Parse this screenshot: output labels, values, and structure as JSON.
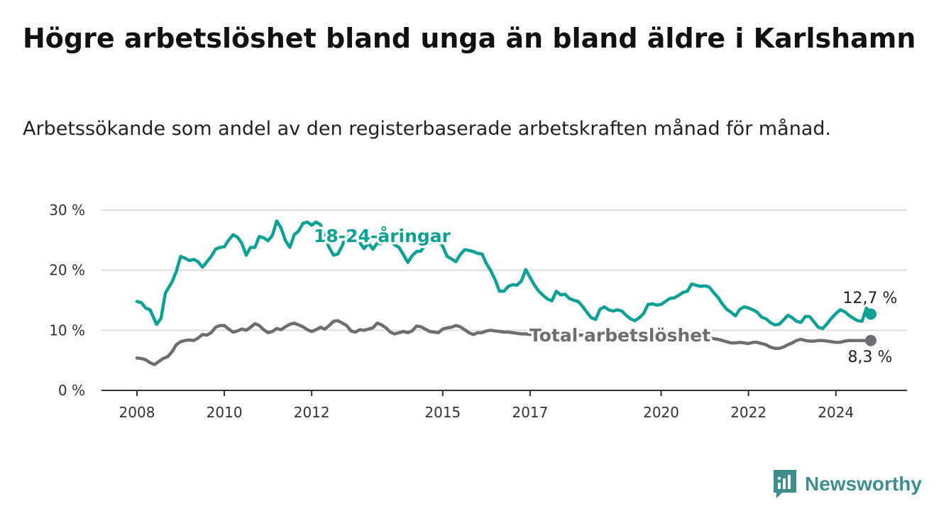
{
  "title": "Högre arbetslöshet bland unga än bland äldre i Karlshamn",
  "subtitle": "Arbetssökande som andel av den registerbaserade arbetskraften månad för månad.",
  "brand": "Newsworthy",
  "colors": {
    "youth": "#0fa193",
    "total": "#6e6d72",
    "grid": "#dddddd",
    "brand": "#3e8e8c"
  },
  "chart_data": {
    "type": "line",
    "ylim": [
      0,
      30
    ],
    "xlim": [
      2008.0,
      2024.8
    ],
    "yticks": [
      {
        "value": 0,
        "label": "0 %"
      },
      {
        "value": 10,
        "label": "10 %"
      },
      {
        "value": 20,
        "label": "20 %"
      },
      {
        "value": 30,
        "label": "30 %"
      }
    ],
    "xticks": [
      {
        "value": 2008,
        "label": "2008"
      },
      {
        "value": 2010,
        "label": "2010"
      },
      {
        "value": 2012,
        "label": "2012"
      },
      {
        "value": 2015,
        "label": "2015"
      },
      {
        "value": 2017,
        "label": "2017"
      },
      {
        "value": 2020,
        "label": "2020"
      },
      {
        "value": 2022,
        "label": "2022"
      },
      {
        "value": 2024,
        "label": "2024"
      }
    ],
    "grid": true,
    "series": [
      {
        "name": "18-24-åringar",
        "end_label": "12,7 %",
        "x": [
          2008.0,
          2008.1,
          2008.2,
          2008.3,
          2008.4,
          2008.45,
          2008.55,
          2008.65,
          2008.8,
          2008.9,
          2009.0,
          2009.1,
          2009.2,
          2009.3,
          2009.4,
          2009.5,
          2009.6,
          2009.7,
          2009.8,
          2009.9,
          2010.0,
          2010.1,
          2010.2,
          2010.3,
          2010.4,
          2010.5,
          2010.6,
          2010.7,
          2010.8,
          2010.9,
          2011.0,
          2011.1,
          2011.2,
          2011.3,
          2011.4,
          2011.5,
          2011.6,
          2011.7,
          2011.8,
          2011.9,
          2012.0,
          2012.1,
          2012.2,
          2012.3,
          2012.4,
          2012.5,
          2012.6,
          2012.7,
          2012.8,
          2012.9,
          2013.0,
          2013.1,
          2013.2,
          2013.3,
          2013.4,
          2013.5,
          2013.6,
          2013.7,
          2013.8,
          2013.9,
          2014.0,
          2014.1,
          2014.2,
          2014.3,
          2014.4,
          2014.5,
          2014.6,
          2014.7,
          2014.8,
          2014.9,
          2015.0,
          2015.1,
          2015.2,
          2015.3,
          2015.4,
          2015.5,
          2015.6,
          2015.7,
          2015.8,
          2015.9,
          2016.0,
          2016.1,
          2016.2,
          2016.3,
          2016.4,
          2016.5,
          2016.6,
          2016.7,
          2016.8,
          2016.9,
          2017.0,
          2017.1,
          2017.2,
          2017.3,
          2017.4,
          2017.5,
          2017.6,
          2017.7,
          2017.8,
          2017.9,
          2018.0,
          2018.1,
          2018.2,
          2018.3,
          2018.4,
          2018.5,
          2018.6,
          2018.7,
          2018.8,
          2018.9,
          2019.0,
          2019.1,
          2019.2,
          2019.3,
          2019.4,
          2019.5,
          2019.6,
          2019.7,
          2019.8,
          2019.9,
          2020.0,
          2020.1,
          2020.2,
          2020.3,
          2020.4,
          2020.5,
          2020.6,
          2020.7,
          2020.8,
          2020.9,
          2021.0,
          2021.1,
          2021.2,
          2021.3,
          2021.4,
          2021.5,
          2021.6,
          2021.7,
          2021.8,
          2021.9,
          2022.0,
          2022.1,
          2022.2,
          2022.3,
          2022.4,
          2022.5,
          2022.6,
          2022.7,
          2022.8,
          2022.9,
          2023.0,
          2023.1,
          2023.2,
          2023.3,
          2023.4,
          2023.5,
          2023.6,
          2023.7,
          2023.8,
          2023.9,
          2024.0,
          2024.1,
          2024.2,
          2024.3,
          2024.4,
          2024.5,
          2024.6,
          2024.7,
          2024.8
        ],
        "values": [
          14.8,
          14.6,
          13.7,
          13.4,
          11.8,
          11.0,
          12.0,
          16.2,
          18.0,
          19.8,
          22.3,
          22.0,
          21.6,
          21.8,
          21.4,
          20.5,
          21.4,
          22.3,
          23.5,
          23.8,
          23.9,
          25.0,
          25.9,
          25.5,
          24.5,
          22.5,
          23.8,
          23.8,
          25.6,
          25.4,
          24.9,
          25.8,
          28.2,
          27.0,
          24.9,
          23.8,
          25.9,
          26.5,
          27.8,
          28.0,
          27.5,
          28.0,
          27.6,
          25.5,
          23.8,
          22.5,
          22.7,
          24.1,
          26.1,
          25.3,
          25.6,
          24.6,
          23.6,
          24.5,
          23.5,
          24.5,
          24.4,
          25.2,
          24.9,
          24.2,
          23.8,
          22.6,
          21.3,
          22.4,
          23.1,
          23.2,
          24.2,
          24.5,
          24.8,
          24.9,
          24.0,
          22.3,
          21.9,
          21.4,
          22.6,
          23.4,
          23.3,
          23.1,
          22.8,
          22.7,
          21.1,
          19.9,
          18.4,
          16.5,
          16.5,
          17.3,
          17.6,
          17.5,
          18.2,
          20.1,
          18.8,
          17.5,
          16.5,
          15.8,
          15.2,
          14.9,
          16.5,
          15.9,
          16.0,
          15.3,
          15.0,
          14.8,
          14.0,
          13.0,
          12.1,
          11.8,
          13.5,
          13.9,
          13.4,
          13.2,
          13.4,
          13.2,
          12.5,
          11.9,
          11.6,
          12.1,
          12.8,
          14.3,
          14.4,
          14.2,
          14.3,
          14.8,
          15.3,
          15.4,
          15.8,
          16.3,
          16.5,
          17.7,
          17.5,
          17.3,
          17.4,
          17.2,
          16.3,
          15.5,
          14.4,
          13.5,
          13.0,
          12.4,
          13.5,
          13.9,
          13.7,
          13.4,
          13.0,
          12.2,
          11.9,
          11.3,
          10.9,
          11.0,
          11.7,
          12.5,
          12.1,
          11.5,
          11.3,
          12.3,
          12.3,
          11.4,
          10.5,
          10.3,
          11.1,
          12.0,
          12.8,
          13.4,
          13.1,
          12.5,
          12.0,
          11.6,
          11.5,
          13.7,
          12.7
        ]
      },
      {
        "name": "Total arbetslöshet",
        "end_label": "8,3 %",
        "x": [
          2008.0,
          2008.1,
          2008.2,
          2008.3,
          2008.4,
          2008.5,
          2008.6,
          2008.7,
          2008.8,
          2008.9,
          2009.0,
          2009.1,
          2009.2,
          2009.3,
          2009.4,
          2009.5,
          2009.6,
          2009.7,
          2009.8,
          2009.9,
          2010.0,
          2010.1,
          2010.2,
          2010.3,
          2010.4,
          2010.5,
          2010.6,
          2010.7,
          2010.8,
          2010.9,
          2011.0,
          2011.1,
          2011.2,
          2011.3,
          2011.4,
          2011.5,
          2011.6,
          2011.7,
          2011.8,
          2011.9,
          2012.0,
          2012.1,
          2012.2,
          2012.3,
          2012.4,
          2012.5,
          2012.6,
          2012.7,
          2012.8,
          2012.9,
          2013.0,
          2013.1,
          2013.2,
          2013.3,
          2013.4,
          2013.5,
          2013.6,
          2013.7,
          2013.8,
          2013.9,
          2014.0,
          2014.1,
          2014.2,
          2014.3,
          2014.4,
          2014.5,
          2014.6,
          2014.7,
          2014.8,
          2014.9,
          2015.0,
          2015.1,
          2015.2,
          2015.3,
          2015.4,
          2015.5,
          2015.6,
          2015.7,
          2015.8,
          2015.9,
          2016.0,
          2016.1,
          2016.2,
          2016.3,
          2016.4,
          2016.5,
          2016.6,
          2016.7,
          2016.8,
          2016.9,
          2017.0,
          2017.5,
          2018.0,
          2018.5,
          2019.0,
          2019.5,
          2020.0,
          2020.5,
          2021.0,
          2021.3,
          2021.5,
          2021.6,
          2021.7,
          2021.8,
          2021.9,
          2022.0,
          2022.1,
          2022.2,
          2022.3,
          2022.4,
          2022.5,
          2022.6,
          2022.7,
          2022.8,
          2022.9,
          2023.0,
          2023.1,
          2023.2,
          2023.3,
          2023.4,
          2023.5,
          2023.6,
          2023.7,
          2023.8,
          2023.9,
          2024.0,
          2024.1,
          2024.2,
          2024.3,
          2024.4,
          2024.5,
          2024.6,
          2024.7,
          2024.8
        ],
        "values": [
          5.4,
          5.3,
          5.1,
          4.6,
          4.3,
          4.8,
          5.3,
          5.6,
          6.4,
          7.6,
          8.1,
          8.3,
          8.4,
          8.3,
          8.7,
          9.3,
          9.2,
          9.6,
          10.5,
          10.8,
          10.8,
          10.2,
          9.7,
          9.9,
          10.2,
          10.0,
          10.5,
          11.1,
          10.8,
          10.1,
          9.6,
          9.8,
          10.3,
          10.1,
          10.6,
          11.0,
          11.2,
          10.9,
          10.6,
          10.1,
          9.8,
          10.1,
          10.5,
          10.2,
          10.8,
          11.5,
          11.6,
          11.2,
          10.8,
          9.9,
          9.7,
          10.1,
          10.0,
          10.2,
          10.4,
          11.2,
          10.9,
          10.4,
          9.7,
          9.4,
          9.6,
          9.8,
          9.6,
          9.9,
          10.7,
          10.6,
          10.2,
          9.8,
          9.7,
          9.6,
          10.2,
          10.4,
          10.5,
          10.8,
          10.6,
          10.1,
          9.6,
          9.3,
          9.6,
          9.6,
          9.9,
          10.0,
          9.9,
          9.8,
          9.7,
          9.7,
          9.6,
          9.5,
          9.4,
          9.4,
          9.3,
          9.2,
          9.2,
          9.2,
          9.2,
          9.1,
          9.3,
          9.0,
          8.8,
          8.5,
          8.1,
          7.9,
          7.9,
          8.0,
          7.9,
          7.8,
          8.0,
          8.0,
          7.8,
          7.6,
          7.2,
          7.0,
          7.0,
          7.2,
          7.6,
          7.9,
          8.3,
          8.5,
          8.3,
          8.2,
          8.2,
          8.3,
          8.3,
          8.2,
          8.1,
          8.0,
          8.0,
          8.2,
          8.3,
          8.3,
          8.3,
          8.3,
          8.3,
          8.3
        ]
      }
    ]
  }
}
